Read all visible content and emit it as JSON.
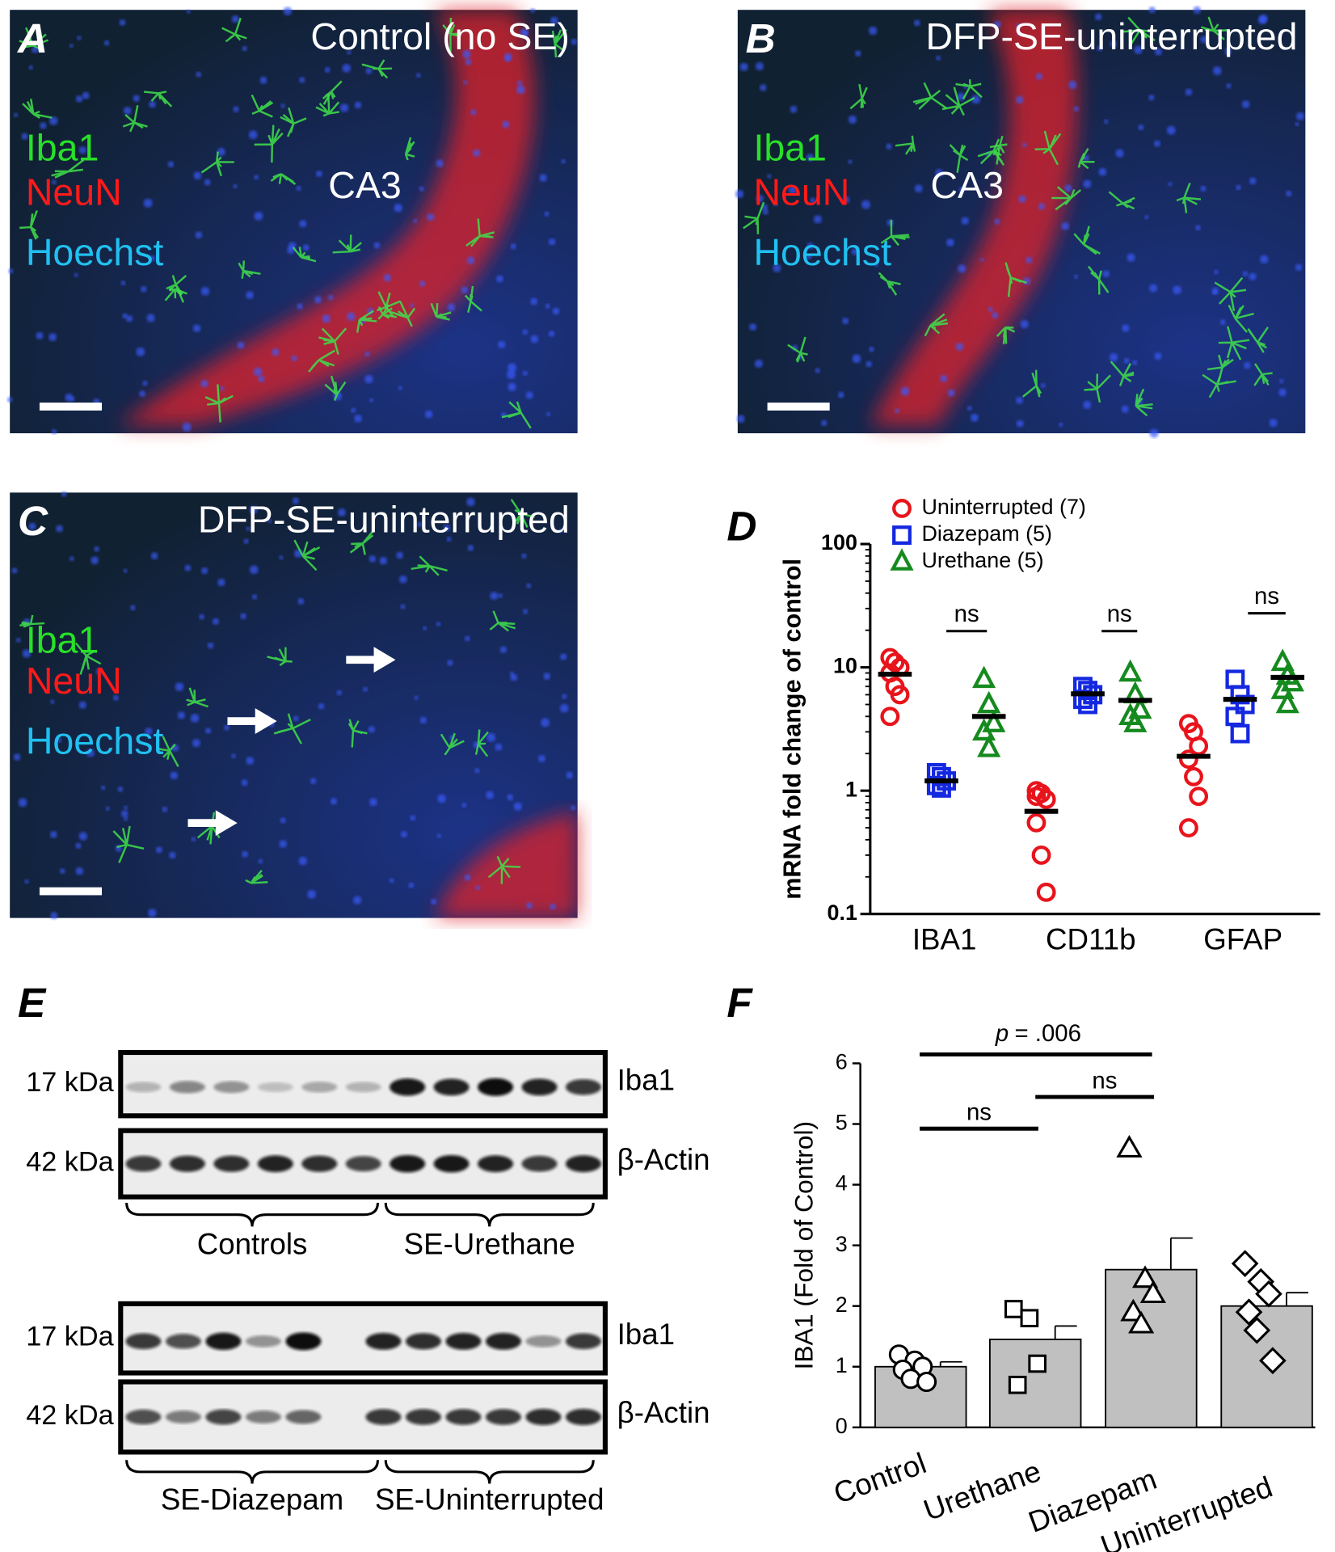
{
  "panels": [
    {
      "letter": "A",
      "title": "Control (no SE)",
      "region": "CA3",
      "stains": [
        "Iba1",
        "NeuN",
        "Hoechst"
      ]
    },
    {
      "letter": "B",
      "title": "DFP-SE-uninterrupted",
      "region": "CA3",
      "stains": [
        "Iba1",
        "NeuN",
        "Hoechst"
      ]
    },
    {
      "letter": "C",
      "title": "DFP-SE-uninterrupted",
      "stains": [
        "Iba1",
        "NeuN",
        "Hoechst"
      ]
    }
  ],
  "blot": {
    "letter": "E",
    "groups": [
      {
        "markers": [
          "17 kDa",
          "42 kDa"
        ],
        "proteins": [
          "Iba1",
          "β-Actin"
        ],
        "labels": [
          "Controls",
          "SE-Urethane"
        ]
      },
      {
        "markers": [
          "17 kDa",
          "42 kDa"
        ],
        "proteins": [
          "Iba1",
          "β-Actin"
        ],
        "labels": [
          "SE-Diazepam",
          "SE-Uninterrupted"
        ]
      }
    ]
  },
  "chart_data": [
    {
      "type": "scatter",
      "letter": "D",
      "ylabel": "mRNA fold change of control",
      "log_y": true,
      "categories": [
        "IBA1",
        "CD11b",
        "GFAP"
      ],
      "ylim": [
        0.1,
        100
      ],
      "yticks": [
        0.1,
        1,
        10,
        100
      ],
      "annotations": [
        "ns",
        "ns",
        "ns"
      ],
      "series": [
        {
          "name": "Uninterrupted (7)",
          "color": "#e8141b",
          "marker": "circle",
          "points": [
            [
              12,
              11,
              10,
              9,
              7,
              6,
              4
            ],
            [
              1.0,
              0.95,
              0.85,
              0.55,
              0.3,
              0.15,
              0.9
            ],
            [
              3.5,
              3.0,
              2.3,
              1.8,
              1.3,
              0.9,
              0.5
            ]
          ],
          "means": [
            8.8,
            0.68,
            1.9
          ]
        },
        {
          "name": "Diazepam (5)",
          "color": "#1428e0",
          "marker": "square",
          "points": [
            [
              1.4,
              1.3,
              1.2,
              1.1,
              1.05
            ],
            [
              7,
              6.5,
              6,
              5.5,
              5
            ],
            [
              8,
              6,
              5,
              4,
              2.9
            ]
          ],
          "means": [
            1.2,
            6.1,
            5.5
          ]
        },
        {
          "name": "Urethane (5)",
          "color": "#158a1e",
          "marker": "triangle",
          "points": [
            [
              8,
              5,
              3.5,
              3,
              2.2
            ],
            [
              9,
              6,
              4.5,
              4,
              3.5
            ],
            [
              11,
              8.5,
              7.5,
              6.5,
              5
            ]
          ],
          "means": [
            4,
            5.4,
            8.3
          ]
        }
      ]
    },
    {
      "type": "bar",
      "letter": "F",
      "ylabel": "IBA1 (Fold of Control)",
      "color": "#c0c0c0",
      "categories": [
        "Control",
        "Urethane",
        "Diazepam",
        "Uninterrupted"
      ],
      "values": [
        1.0,
        1.45,
        2.6,
        2.0
      ],
      "errors": [
        0.08,
        0.22,
        0.52,
        0.22
      ],
      "points": [
        [
          1.2,
          1.1,
          1.0,
          0.95,
          0.8,
          0.75
        ],
        [
          1.95,
          1.8,
          1.05,
          0.7
        ],
        [
          4.6,
          2.45,
          2.2,
          1.9,
          1.7
        ],
        [
          2.7,
          2.4,
          2.2,
          1.9,
          1.6,
          1.1
        ]
      ],
      "markers": [
        "circle",
        "square",
        "triangle",
        "diamond"
      ],
      "ylim": [
        0,
        6
      ],
      "yticks": [
        0,
        1,
        2,
        3,
        4,
        5,
        6
      ],
      "p_symbol": "p",
      "p_text": "= .006",
      "annotations": [
        "ns",
        "ns"
      ]
    }
  ]
}
